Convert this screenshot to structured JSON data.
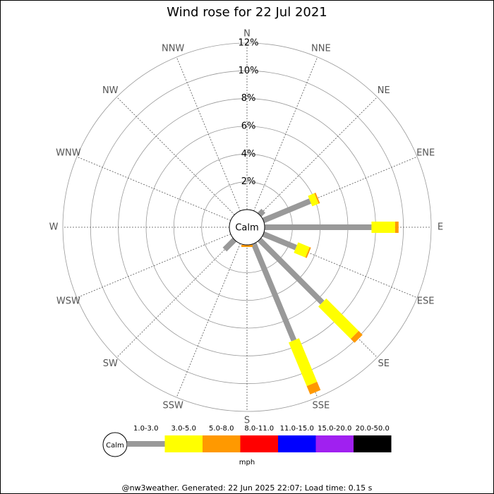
{
  "chart_data": {
    "type": "windrose",
    "title": "Wind rose for 22 Jul 2021",
    "categories": [
      "N",
      "NNE",
      "NE",
      "ENE",
      "E",
      "ESE",
      "SE",
      "SSE",
      "S",
      "SSW",
      "SW",
      "WSW",
      "W",
      "WNW",
      "NW",
      "NNW"
    ],
    "calm_label": "Calm",
    "unit_label": "mph",
    "rlim": [
      0,
      12
    ],
    "rticks": [
      {
        "value": 2,
        "label": "2%"
      },
      {
        "value": 4,
        "label": "4%"
      },
      {
        "value": 6,
        "label": "6%"
      },
      {
        "value": 8,
        "label": "8%"
      },
      {
        "value": 10,
        "label": "10%"
      },
      {
        "value": 12,
        "label": "12%"
      }
    ],
    "series": [
      {
        "name": "1.0-3.0",
        "color": "#999999",
        "values": [
          0,
          0,
          0.4,
          3.65,
          7.7,
          2.55,
          6.4,
          7.55,
          0,
          0,
          1.0,
          0,
          0,
          0,
          0,
          0
        ]
      },
      {
        "name": "3.0-5.0",
        "color": "#ffff00",
        "values": [
          0,
          0,
          0,
          0.5,
          1.7,
          0.9,
          3.3,
          3.4,
          0,
          0,
          0,
          0,
          0,
          0,
          0,
          0
        ]
      },
      {
        "name": "5.0-8.0",
        "color": "#ff9900",
        "values": [
          0,
          0,
          0,
          0.1,
          0.25,
          0.1,
          0.4,
          0.65,
          0.15,
          0,
          0,
          0,
          0,
          0,
          0,
          0
        ]
      },
      {
        "name": "8.0-11.0",
        "color": "#ff0000",
        "values": [
          0,
          0,
          0,
          0,
          0,
          0,
          0,
          0,
          0,
          0,
          0,
          0,
          0,
          0,
          0,
          0
        ]
      },
      {
        "name": "11.0-15.0",
        "color": "#0000ff",
        "values": [
          0,
          0,
          0,
          0,
          0,
          0,
          0,
          0,
          0,
          0,
          0,
          0,
          0,
          0,
          0,
          0
        ]
      },
      {
        "name": "15.0-20.0",
        "color": "#a020f0",
        "values": [
          0,
          0,
          0,
          0,
          0,
          0,
          0,
          0,
          0,
          0,
          0,
          0,
          0,
          0,
          0,
          0
        ]
      },
      {
        "name": "20.0-50.0",
        "color": "#000000",
        "values": [
          0,
          0,
          0,
          0,
          0,
          0,
          0,
          0,
          0,
          0,
          0,
          0,
          0,
          0,
          0,
          0
        ]
      }
    ],
    "footer": "@nw3weather. Generated: 22 Jun 2025 22:07; Load time: 0.15 s"
  }
}
